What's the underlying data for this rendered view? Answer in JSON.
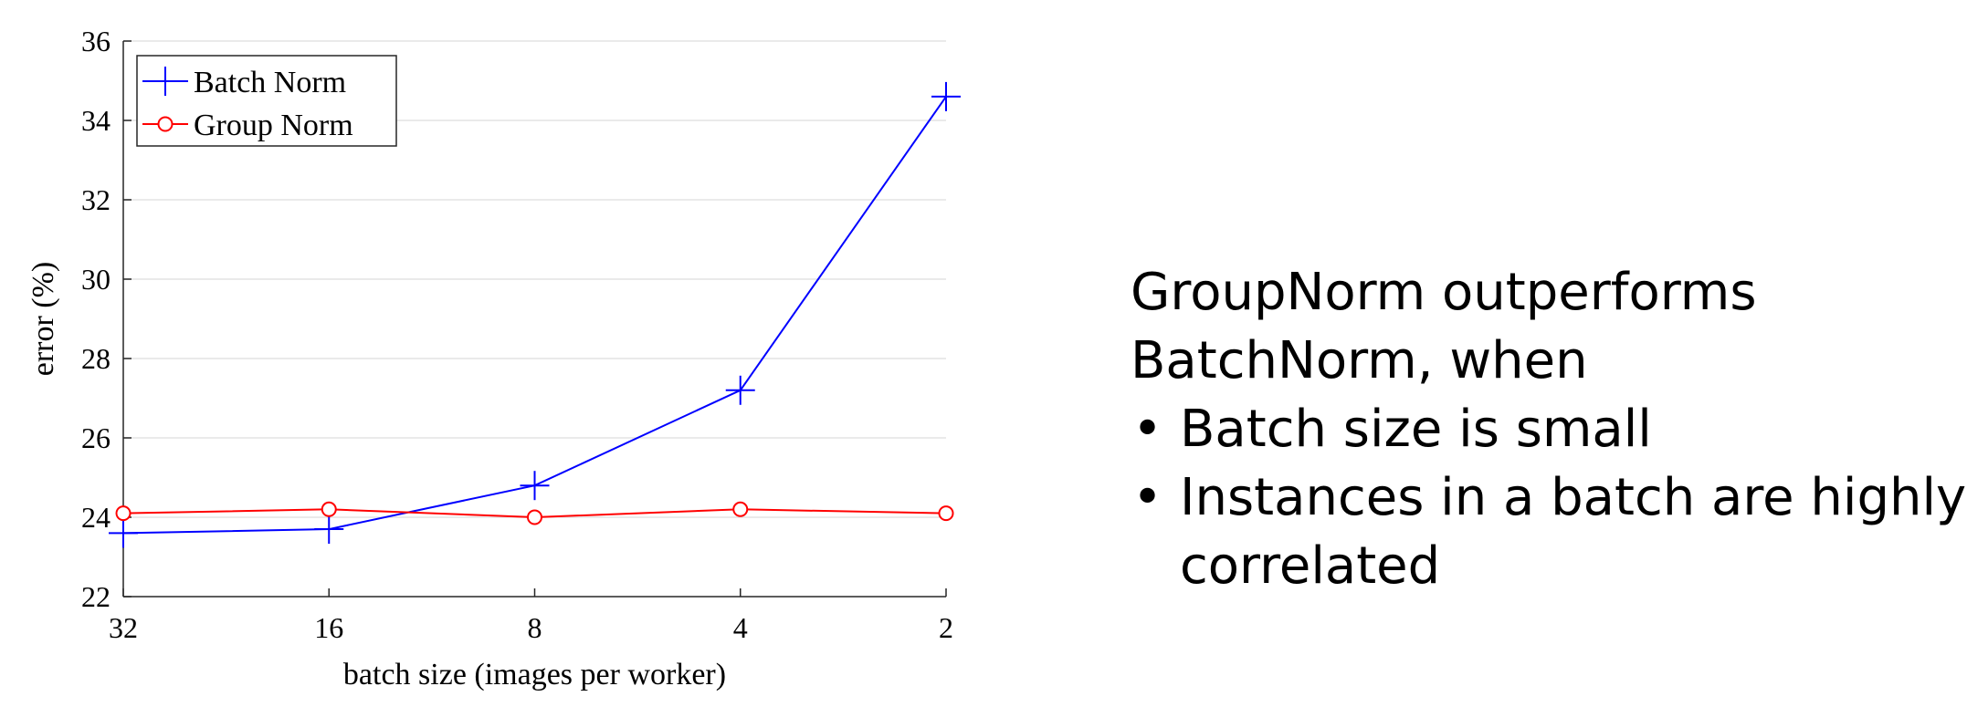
{
  "chart_data": {
    "type": "line",
    "x": [
      "32",
      "16",
      "8",
      "4",
      "2"
    ],
    "xlabel": "batch size (images per worker)",
    "ylabel": "error (%)",
    "ylim": [
      22,
      36
    ],
    "yticks": [
      22,
      24,
      26,
      28,
      30,
      32,
      34,
      36
    ],
    "grid": "horizontal",
    "legend_position": "top-left",
    "series": [
      {
        "name": "Batch Norm",
        "color": "#0000ff",
        "marker": "plus",
        "values": [
          23.6,
          23.7,
          24.8,
          27.2,
          34.6
        ]
      },
      {
        "name": "Group Norm",
        "color": "#ff0000",
        "marker": "circle",
        "values": [
          24.1,
          24.2,
          24.0,
          24.2,
          24.1
        ]
      }
    ]
  },
  "notes": {
    "heading_line1": "GroupNorm outperforms",
    "heading_line2": "BatchNorm, when",
    "bullets": [
      {
        "line1": "Batch size is small",
        "line2": ""
      },
      {
        "line1": "Instances in a batch are highly",
        "line2": "correlated"
      }
    ]
  }
}
